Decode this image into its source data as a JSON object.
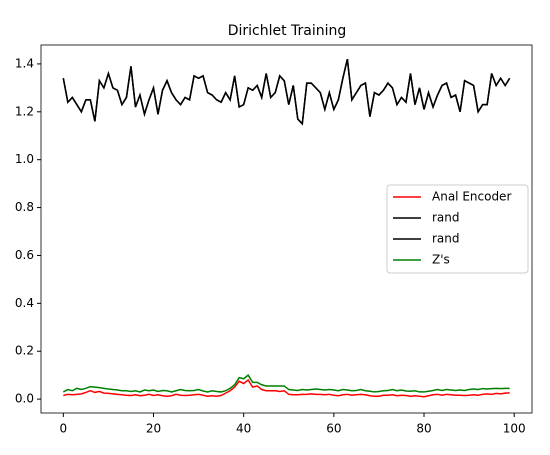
{
  "chart_data": {
    "type": "line",
    "title": "Dirichlet Training",
    "x": [
      0,
      1,
      2,
      3,
      4,
      5,
      6,
      7,
      8,
      9,
      10,
      11,
      12,
      13,
      14,
      15,
      16,
      17,
      18,
      19,
      20,
      21,
      22,
      23,
      24,
      25,
      26,
      27,
      28,
      29,
      30,
      31,
      32,
      33,
      34,
      35,
      36,
      37,
      38,
      39,
      40,
      41,
      42,
      43,
      44,
      45,
      46,
      47,
      48,
      49,
      50,
      51,
      52,
      53,
      54,
      55,
      56,
      57,
      58,
      59,
      60,
      61,
      62,
      63,
      64,
      65,
      66,
      67,
      68,
      69,
      70,
      71,
      72,
      73,
      74,
      75,
      76,
      77,
      78,
      79,
      80,
      81,
      82,
      83,
      84,
      85,
      86,
      87,
      88,
      89,
      90,
      91,
      92,
      93,
      94,
      95,
      96,
      97,
      98,
      99
    ],
    "series": [
      {
        "name": "Anal Encoder",
        "color": "#ff0000",
        "values": [
          0.015,
          0.02,
          0.018,
          0.02,
          0.022,
          0.028,
          0.035,
          0.028,
          0.032,
          0.025,
          0.024,
          0.022,
          0.02,
          0.018,
          0.016,
          0.015,
          0.018,
          0.014,
          0.016,
          0.02,
          0.015,
          0.018,
          0.014,
          0.012,
          0.014,
          0.02,
          0.016,
          0.015,
          0.016,
          0.018,
          0.02,
          0.016,
          0.012,
          0.014,
          0.012,
          0.015,
          0.025,
          0.035,
          0.05,
          0.075,
          0.065,
          0.08,
          0.05,
          0.055,
          0.04,
          0.035,
          0.035,
          0.035,
          0.032,
          0.035,
          0.02,
          0.018,
          0.018,
          0.02,
          0.02,
          0.022,
          0.02,
          0.02,
          0.018,
          0.02,
          0.016,
          0.014,
          0.018,
          0.02,
          0.016,
          0.018,
          0.02,
          0.018,
          0.014,
          0.012,
          0.012,
          0.016,
          0.016,
          0.018,
          0.014,
          0.016,
          0.015,
          0.012,
          0.014,
          0.012,
          0.01,
          0.014,
          0.018,
          0.02,
          0.016,
          0.02,
          0.018,
          0.016,
          0.016,
          0.015,
          0.016,
          0.018,
          0.016,
          0.02,
          0.022,
          0.02,
          0.024,
          0.022,
          0.025,
          0.026
        ]
      },
      {
        "name": "rand",
        "color": "#000000",
        "values": [
          1.34,
          1.24,
          1.26,
          1.23,
          1.2,
          1.25,
          1.25,
          1.16,
          1.33,
          1.3,
          1.36,
          1.3,
          1.29,
          1.23,
          1.26,
          1.39,
          1.22,
          1.27,
          1.19,
          1.25,
          1.3,
          1.19,
          1.29,
          1.33,
          1.28,
          1.25,
          1.23,
          1.26,
          1.25,
          1.35,
          1.34,
          1.35,
          1.28,
          1.27,
          1.25,
          1.24,
          1.28,
          1.25,
          1.35,
          1.22,
          1.23,
          1.3,
          1.29,
          1.31,
          1.26,
          1.36,
          1.26,
          1.28,
          1.35,
          1.33,
          1.23,
          1.31,
          1.17,
          1.15,
          1.32,
          1.32,
          1.3,
          1.28,
          1.21,
          1.28,
          1.21,
          1.25,
          1.34,
          1.42,
          1.25,
          1.28,
          1.31,
          1.32,
          1.18,
          1.28,
          1.27,
          1.29,
          1.32,
          1.3,
          1.23,
          1.26,
          1.24,
          1.36,
          1.23,
          1.3,
          1.21,
          1.28,
          1.22,
          1.27,
          1.31,
          1.32,
          1.26,
          1.27,
          1.2,
          1.33,
          1.32,
          1.31,
          1.2,
          1.23,
          1.23,
          1.36,
          1.31,
          1.34,
          1.31,
          1.34
        ]
      },
      {
        "name": "rand",
        "color": "#000000",
        "values": [
          1.34,
          1.24,
          1.26,
          1.23,
          1.2,
          1.25,
          1.25,
          1.16,
          1.33,
          1.3,
          1.36,
          1.3,
          1.29,
          1.23,
          1.26,
          1.39,
          1.22,
          1.27,
          1.19,
          1.25,
          1.3,
          1.19,
          1.29,
          1.33,
          1.28,
          1.25,
          1.23,
          1.26,
          1.25,
          1.35,
          1.34,
          1.35,
          1.28,
          1.27,
          1.25,
          1.24,
          1.28,
          1.25,
          1.35,
          1.22,
          1.23,
          1.3,
          1.29,
          1.31,
          1.26,
          1.36,
          1.26,
          1.28,
          1.35,
          1.33,
          1.23,
          1.31,
          1.17,
          1.15,
          1.32,
          1.32,
          1.3,
          1.28,
          1.21,
          1.28,
          1.21,
          1.25,
          1.34,
          1.42,
          1.25,
          1.28,
          1.31,
          1.32,
          1.18,
          1.28,
          1.27,
          1.29,
          1.32,
          1.3,
          1.23,
          1.26,
          1.24,
          1.36,
          1.23,
          1.3,
          1.21,
          1.28,
          1.22,
          1.27,
          1.31,
          1.32,
          1.26,
          1.27,
          1.2,
          1.33,
          1.32,
          1.31,
          1.2,
          1.23,
          1.23,
          1.36,
          1.31,
          1.34,
          1.31,
          1.34
        ]
      },
      {
        "name": "Z's",
        "color": "#008000",
        "values": [
          0.03,
          0.04,
          0.035,
          0.045,
          0.04,
          0.045,
          0.052,
          0.05,
          0.048,
          0.045,
          0.042,
          0.04,
          0.038,
          0.035,
          0.035,
          0.032,
          0.035,
          0.03,
          0.038,
          0.035,
          0.038,
          0.032,
          0.036,
          0.035,
          0.03,
          0.035,
          0.04,
          0.036,
          0.035,
          0.036,
          0.04,
          0.034,
          0.03,
          0.035,
          0.032,
          0.03,
          0.035,
          0.045,
          0.06,
          0.09,
          0.085,
          0.1,
          0.07,
          0.07,
          0.06,
          0.055,
          0.055,
          0.055,
          0.055,
          0.055,
          0.04,
          0.038,
          0.036,
          0.04,
          0.038,
          0.04,
          0.042,
          0.04,
          0.038,
          0.04,
          0.038,
          0.035,
          0.04,
          0.038,
          0.035,
          0.036,
          0.04,
          0.035,
          0.033,
          0.03,
          0.032,
          0.035,
          0.036,
          0.04,
          0.035,
          0.038,
          0.034,
          0.033,
          0.035,
          0.03,
          0.03,
          0.033,
          0.036,
          0.04,
          0.036,
          0.04,
          0.038,
          0.036,
          0.038,
          0.036,
          0.04,
          0.042,
          0.04,
          0.044,
          0.042,
          0.044,
          0.045,
          0.044,
          0.045,
          0.045
        ]
      }
    ],
    "xlim": [
      -4.95,
      103.95
    ],
    "xticks": [
      0,
      20,
      40,
      60,
      80,
      100
    ],
    "ylim": [
      -0.058,
      1.479
    ],
    "yticks": [
      {
        "value": 0,
        "label": "0.0"
      },
      0.2,
      0.4,
      0.6,
      0.8,
      {
        "value": 1,
        "label": "1.0"
      },
      1.2,
      1.4
    ],
    "legend": "center right"
  }
}
